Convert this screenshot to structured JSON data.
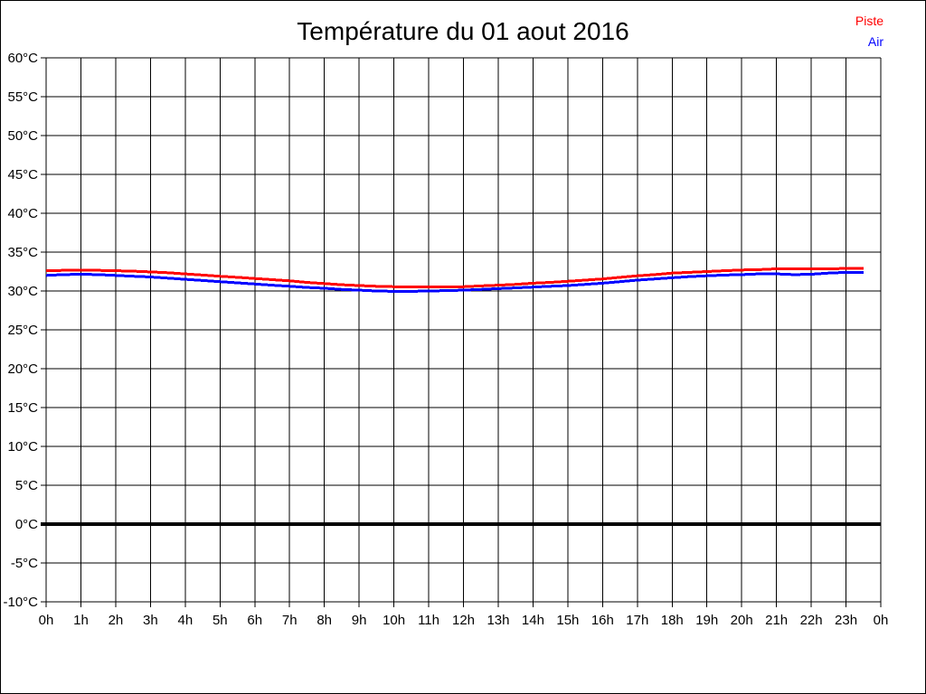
{
  "title": "Température du 01 aout 2016",
  "legend": {
    "position": "top-right",
    "items": [
      {
        "label": "Piste",
        "color": "#ff0000"
      },
      {
        "label": "Air",
        "color": "#0000ff"
      }
    ]
  },
  "chart_data": {
    "type": "line",
    "title": "Température du 01 aout 2016",
    "xlabel": "",
    "ylabel": "",
    "x_unit": "hour of day",
    "y_unit": "°C",
    "xlim_hours": [
      0,
      24
    ],
    "ylim": [
      -10,
      60
    ],
    "grid": true,
    "x_tick_labels": [
      "0h",
      "1h",
      "2h",
      "3h",
      "4h",
      "5h",
      "6h",
      "7h",
      "8h",
      "9h",
      "10h",
      "11h",
      "12h",
      "13h",
      "14h",
      "15h",
      "16h",
      "17h",
      "18h",
      "19h",
      "20h",
      "21h",
      "22h",
      "23h",
      "0h"
    ],
    "y_ticks": [
      60,
      55,
      50,
      45,
      40,
      35,
      30,
      25,
      20,
      15,
      10,
      5,
      0,
      -5,
      -10
    ],
    "y_tick_labels": [
      "60°C",
      "55°C",
      "50°C",
      "45°C",
      "40°C",
      "35°C",
      "30°C",
      "25°C",
      "20°C",
      "15°C",
      "10°C",
      "5°C",
      "0°C",
      "-5°C",
      "-10°C"
    ],
    "zero_line": {
      "value": 0,
      "color": "#000000",
      "width": 4
    },
    "x": [
      0,
      0.5,
      1,
      1.5,
      2,
      2.5,
      3,
      3.5,
      4,
      4.5,
      5,
      5.5,
      6,
      6.5,
      7,
      7.5,
      8,
      8.5,
      9,
      9.5,
      10,
      10.5,
      11,
      11.5,
      12,
      12.5,
      13,
      13.5,
      14,
      14.5,
      15,
      15.5,
      16,
      16.5,
      17,
      17.5,
      18,
      18.5,
      19,
      19.5,
      20,
      20.5,
      21,
      21.5,
      22,
      22.5,
      23,
      23.5
    ],
    "series": [
      {
        "name": "Piste",
        "color": "#ff0000",
        "values": [
          32.6,
          32.65,
          32.65,
          32.65,
          32.6,
          32.55,
          32.45,
          32.35,
          32.2,
          32.05,
          31.9,
          31.75,
          31.6,
          31.45,
          31.3,
          31.1,
          30.95,
          30.8,
          30.7,
          30.6,
          30.55,
          30.5,
          30.5,
          30.5,
          30.55,
          30.65,
          30.75,
          30.85,
          31.0,
          31.1,
          31.25,
          31.4,
          31.55,
          31.75,
          31.95,
          32.1,
          32.3,
          32.4,
          32.5,
          32.6,
          32.7,
          32.75,
          32.85,
          32.85,
          32.85,
          32.85,
          32.9,
          32.9
        ]
      },
      {
        "name": "Air",
        "color": "#0000ff",
        "values": [
          32.0,
          32.1,
          32.15,
          32.1,
          32.0,
          31.9,
          31.8,
          31.65,
          31.5,
          31.35,
          31.2,
          31.05,
          30.9,
          30.75,
          30.6,
          30.45,
          30.35,
          30.2,
          30.1,
          30.0,
          29.95,
          29.95,
          30.0,
          30.05,
          30.1,
          30.2,
          30.3,
          30.4,
          30.5,
          30.6,
          30.7,
          30.85,
          31.0,
          31.2,
          31.4,
          31.55,
          31.7,
          31.85,
          31.95,
          32.05,
          32.1,
          32.2,
          32.2,
          32.1,
          32.15,
          32.3,
          32.4,
          32.4
        ]
      }
    ]
  },
  "colors": {
    "background": "#ffffff",
    "grid": "#000000",
    "text": "#000000",
    "border": "#000000"
  }
}
